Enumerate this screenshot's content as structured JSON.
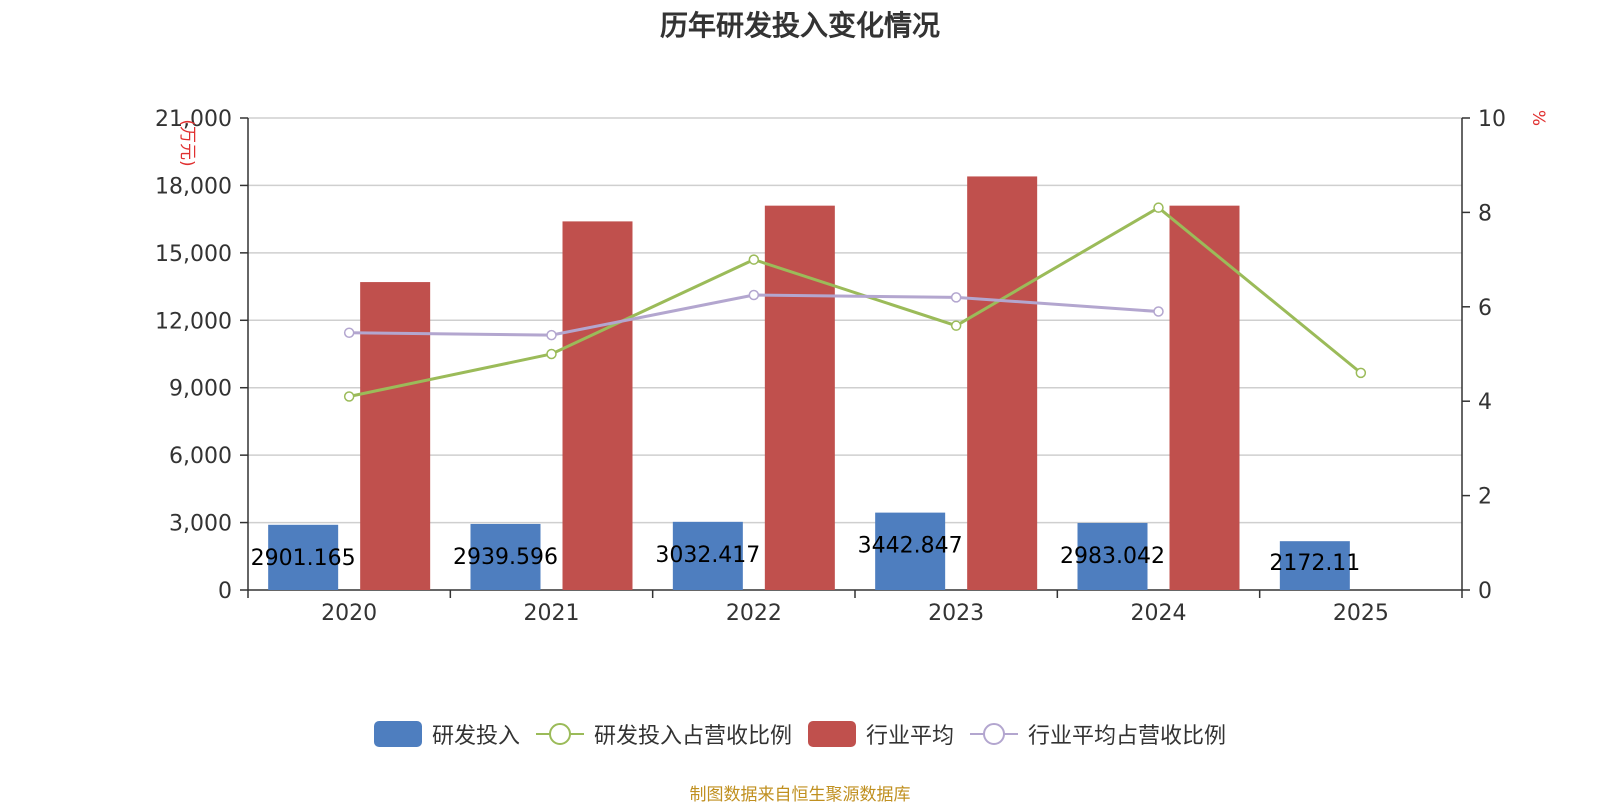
{
  "title": "历年研发投入变化情况",
  "source_note": "制图数据来自恒生聚源数据库",
  "chart_data": {
    "type": "bar",
    "categories": [
      "2020",
      "2021",
      "2022",
      "2023",
      "2024",
      "2025"
    ],
    "y_left": {
      "unit": "万元",
      "min": 0,
      "max": 21000,
      "ticks": [
        0,
        3000,
        6000,
        9000,
        12000,
        15000,
        18000,
        21000
      ],
      "tick_labels": [
        "0",
        "3,000",
        "6,000",
        "9,000",
        "12,000",
        "15,000",
        "18,000",
        "21,000"
      ]
    },
    "y_right": {
      "unit": "%",
      "min": 0,
      "max": 10,
      "ticks": [
        0,
        2,
        4,
        6,
        8,
        10
      ],
      "tick_labels": [
        "0",
        "2",
        "4",
        "6",
        "8",
        "10"
      ]
    },
    "grid": true,
    "legend_position": "bottom",
    "series": [
      {
        "name": "研发投入",
        "kind": "bar",
        "axis": "left",
        "color": "#4e7ebf",
        "values": [
          2901.165,
          2939.596,
          3032.417,
          3442.847,
          2983.042,
          2172.11
        ],
        "labels": [
          "2901.165",
          "2939.596",
          "3032.417",
          "3442.847",
          "2983.042",
          "2172.11"
        ]
      },
      {
        "name": "研发投入占营收比例",
        "kind": "line",
        "axis": "right",
        "color": "#9bbb59",
        "values": [
          4.1,
          5.0,
          7.0,
          5.6,
          8.1,
          4.6
        ]
      },
      {
        "name": "行业平均",
        "kind": "bar",
        "axis": "left",
        "color": "#c0504d",
        "values": [
          13700,
          16400,
          17100,
          18400,
          17100,
          null
        ]
      },
      {
        "name": "行业平均占营收比例",
        "kind": "line",
        "axis": "right",
        "color": "#b3a6cf",
        "values": [
          5.45,
          5.4,
          6.25,
          6.2,
          5.9,
          null
        ]
      }
    ]
  }
}
